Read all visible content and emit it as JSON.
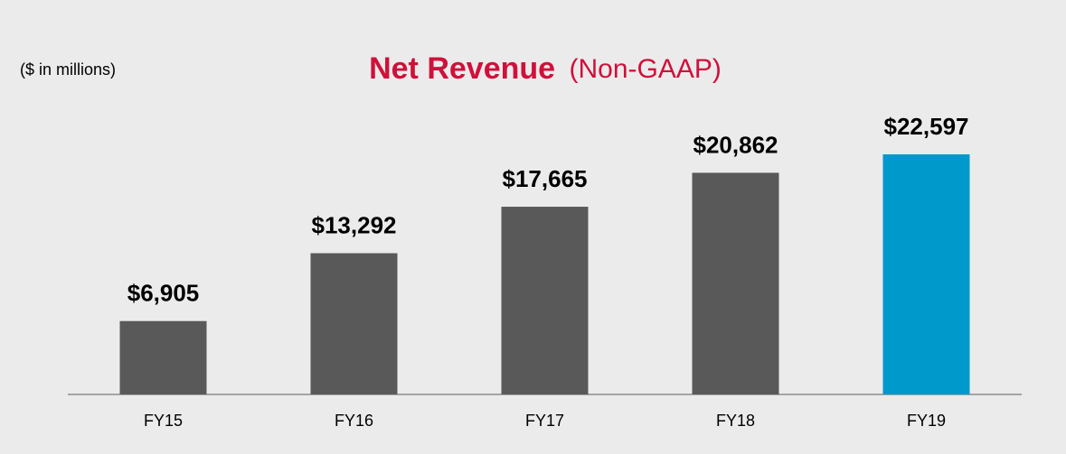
{
  "chart_data": {
    "type": "bar",
    "title": "Net Revenue",
    "title_note": "(Non-GAAP)",
    "subtitle": "($ in millions)",
    "categories": [
      "FY15",
      "FY16",
      "FY17",
      "FY18",
      "FY19"
    ],
    "values": [
      6905,
      13292,
      17665,
      20862,
      22597
    ],
    "value_labels": [
      "$6,905",
      "$13,292",
      "$17,665",
      "$20,862",
      "$22,597"
    ],
    "colors": [
      "#595959",
      "#595959",
      "#595959",
      "#595959",
      "#0099cc"
    ]
  }
}
